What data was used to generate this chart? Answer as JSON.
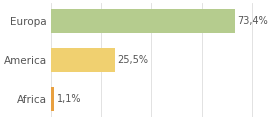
{
  "categories": [
    "Africa",
    "America",
    "Europa"
  ],
  "values": [
    1.1,
    25.5,
    73.4
  ],
  "labels": [
    "1,1%",
    "25,5%",
    "73,4%"
  ],
  "bar_colors": [
    "#e8a040",
    "#f0d070",
    "#b5cc8e"
  ],
  "background_color": "#ffffff",
  "grid_color": "#dddddd",
  "text_color": "#555555",
  "figsize": [
    2.8,
    1.2
  ],
  "dpi": 100,
  "xlim": [
    0,
    90
  ]
}
